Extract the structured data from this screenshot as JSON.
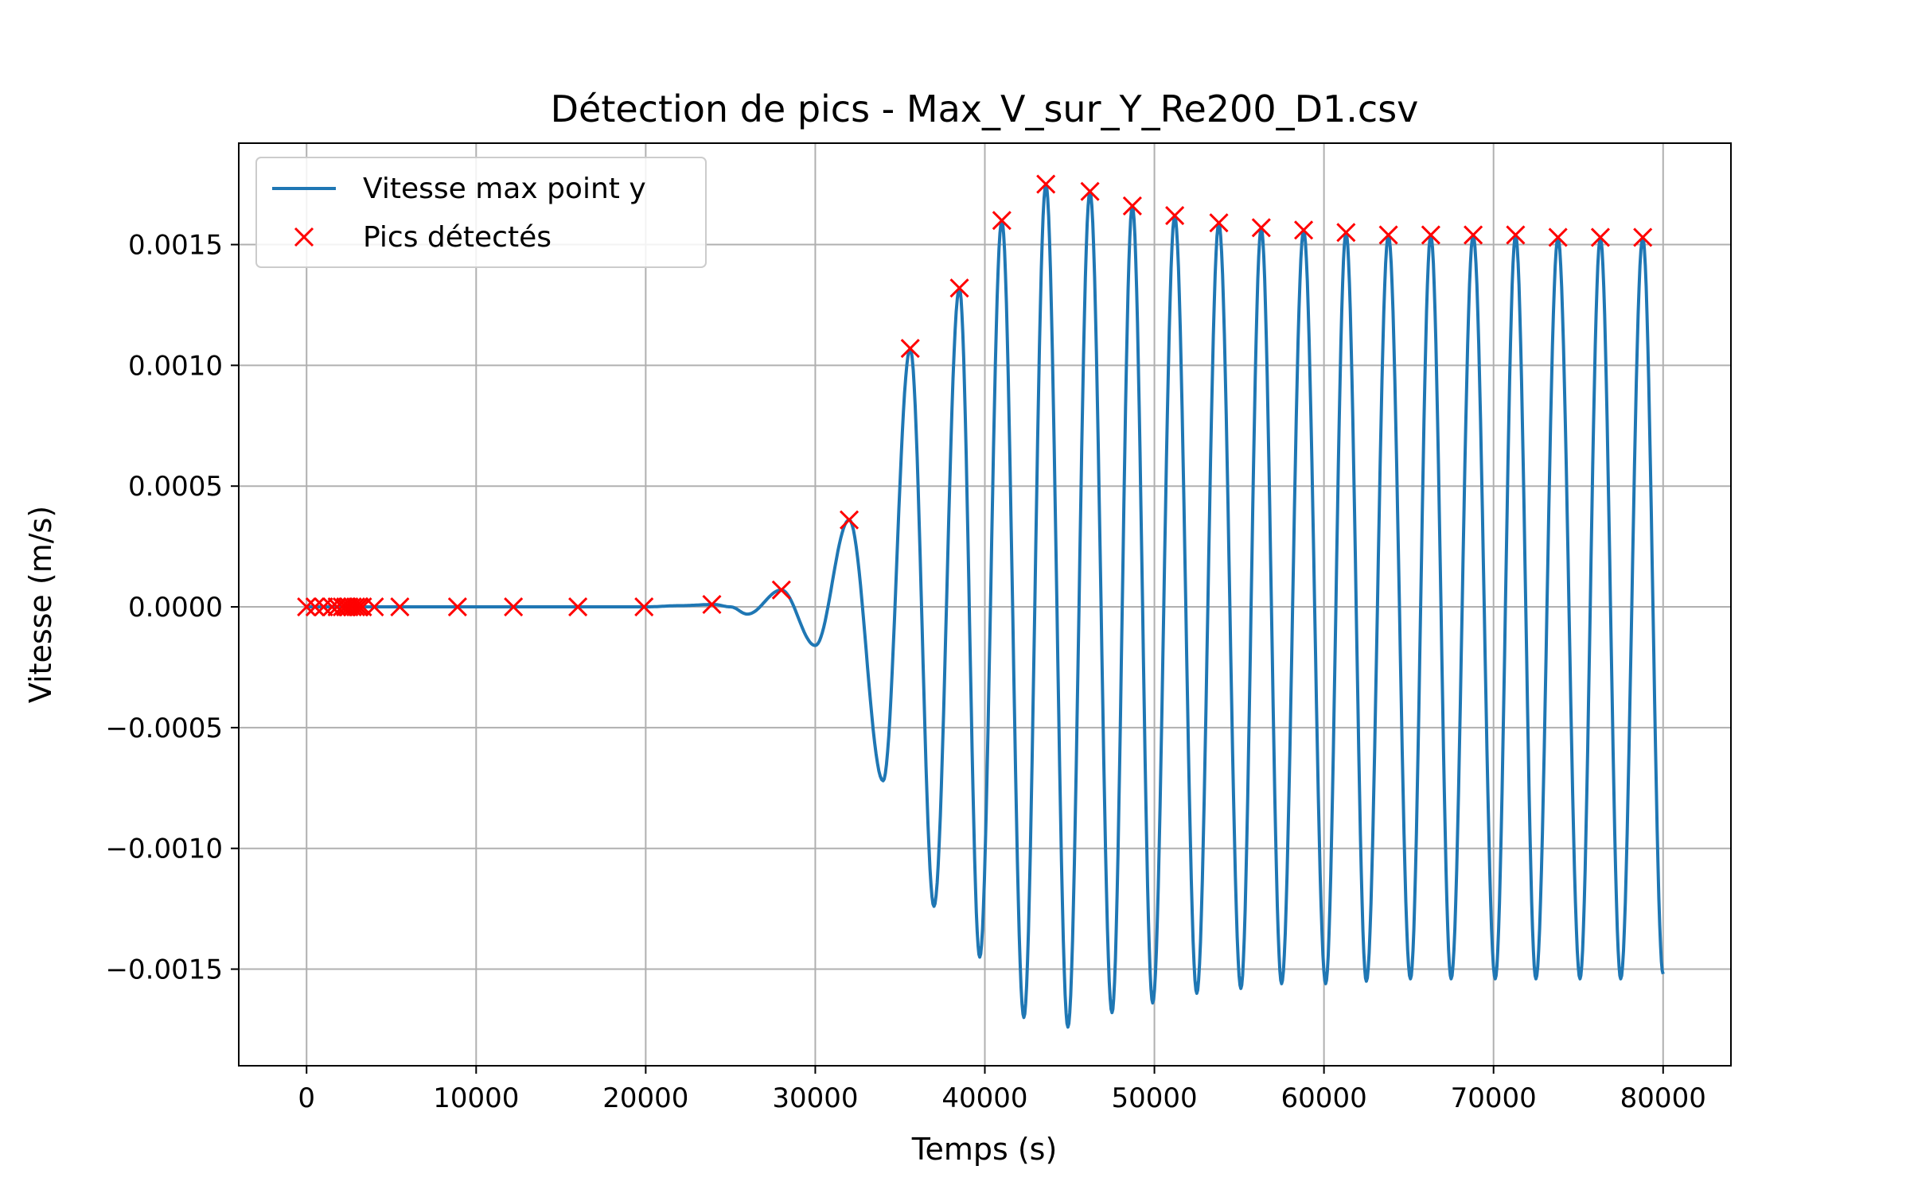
{
  "chart_data": {
    "type": "line",
    "title": "Détection de pics - Max_V_sur_Y_Re200_D1.csv",
    "xlabel": "Temps (s)",
    "ylabel": "Vitesse (m/s)",
    "xlim": [
      -4000,
      84000
    ],
    "ylim": [
      -0.0019,
      0.00192
    ],
    "xticks": [
      0,
      10000,
      20000,
      30000,
      40000,
      50000,
      60000,
      70000,
      80000
    ],
    "xtick_labels": [
      "0",
      "10000",
      "20000",
      "30000",
      "40000",
      "50000",
      "60000",
      "70000",
      "80000"
    ],
    "yticks": [
      -0.0015,
      -0.001,
      -0.0005,
      0,
      0.0005,
      0.001,
      0.0015
    ],
    "ytick_labels": [
      "−0.0015",
      "−0.0010",
      "−0.0005",
      "0.0000",
      "0.0005",
      "0.0010",
      "0.0015"
    ],
    "grid": true,
    "legend_position": "top-left",
    "series": [
      {
        "name": "Vitesse max point y",
        "kind": "line",
        "color": "#1f77b4",
        "x": [
          0,
          5000,
          10000,
          15000,
          20000,
          22000,
          24000,
          25000,
          26000,
          28000,
          30000,
          32000,
          34000,
          35600,
          37000,
          38500,
          39700,
          41000,
          42300,
          43600,
          44900,
          46200,
          47500,
          48700,
          49900,
          51200,
          52500,
          53800,
          55100,
          56300,
          57500,
          58800,
          60100,
          61300,
          62500,
          63800,
          65100,
          66300,
          67500,
          68800,
          70100,
          71300,
          72500,
          73800,
          75100,
          76300,
          77500,
          78800,
          80000
        ],
        "y": [
          0,
          0,
          0,
          0,
          0,
          5e-06,
          1e-05,
          0,
          -3e-05,
          7e-05,
          -0.00016,
          0.00036,
          -0.00072,
          0.00107,
          -0.00124,
          0.00132,
          -0.00145,
          0.0016,
          -0.0017,
          0.00175,
          -0.00174,
          0.00172,
          -0.00168,
          0.00166,
          -0.00164,
          0.00162,
          -0.0016,
          0.00159,
          -0.00158,
          0.00157,
          -0.00156,
          0.00156,
          -0.00156,
          0.00155,
          -0.00155,
          0.00154,
          -0.00154,
          0.00154,
          -0.00154,
          0.00154,
          -0.00154,
          0.00154,
          -0.00154,
          0.00153,
          -0.00154,
          0.00153,
          -0.00154,
          0.00153,
          -0.00152
        ]
      },
      {
        "name": "Pics détectés",
        "kind": "marker",
        "marker": "x",
        "color": "#ff0000",
        "x": [
          0,
          500,
          1000,
          1500,
          1800,
          2100,
          2300,
          2500,
          2700,
          2900,
          3100,
          3300,
          4000,
          5500,
          8900,
          12200,
          16000,
          19900,
          23900,
          28000,
          32000,
          35600,
          38500,
          41000,
          43600,
          46200,
          48700,
          51200,
          53800,
          56300,
          58800,
          61300,
          63800,
          66300,
          68800,
          71300,
          73800,
          76300,
          78800
        ],
        "y": [
          0,
          0,
          0,
          0,
          0,
          0,
          0,
          0,
          0,
          0,
          0,
          0,
          0,
          0,
          0,
          0,
          0,
          0,
          1e-05,
          7e-05,
          0.00036,
          0.00107,
          0.00132,
          0.0016,
          0.00175,
          0.00172,
          0.00166,
          0.00162,
          0.00159,
          0.00157,
          0.00156,
          0.00155,
          0.00154,
          0.00154,
          0.00154,
          0.00154,
          0.00153,
          0.00153,
          0.00153
        ]
      }
    ]
  }
}
